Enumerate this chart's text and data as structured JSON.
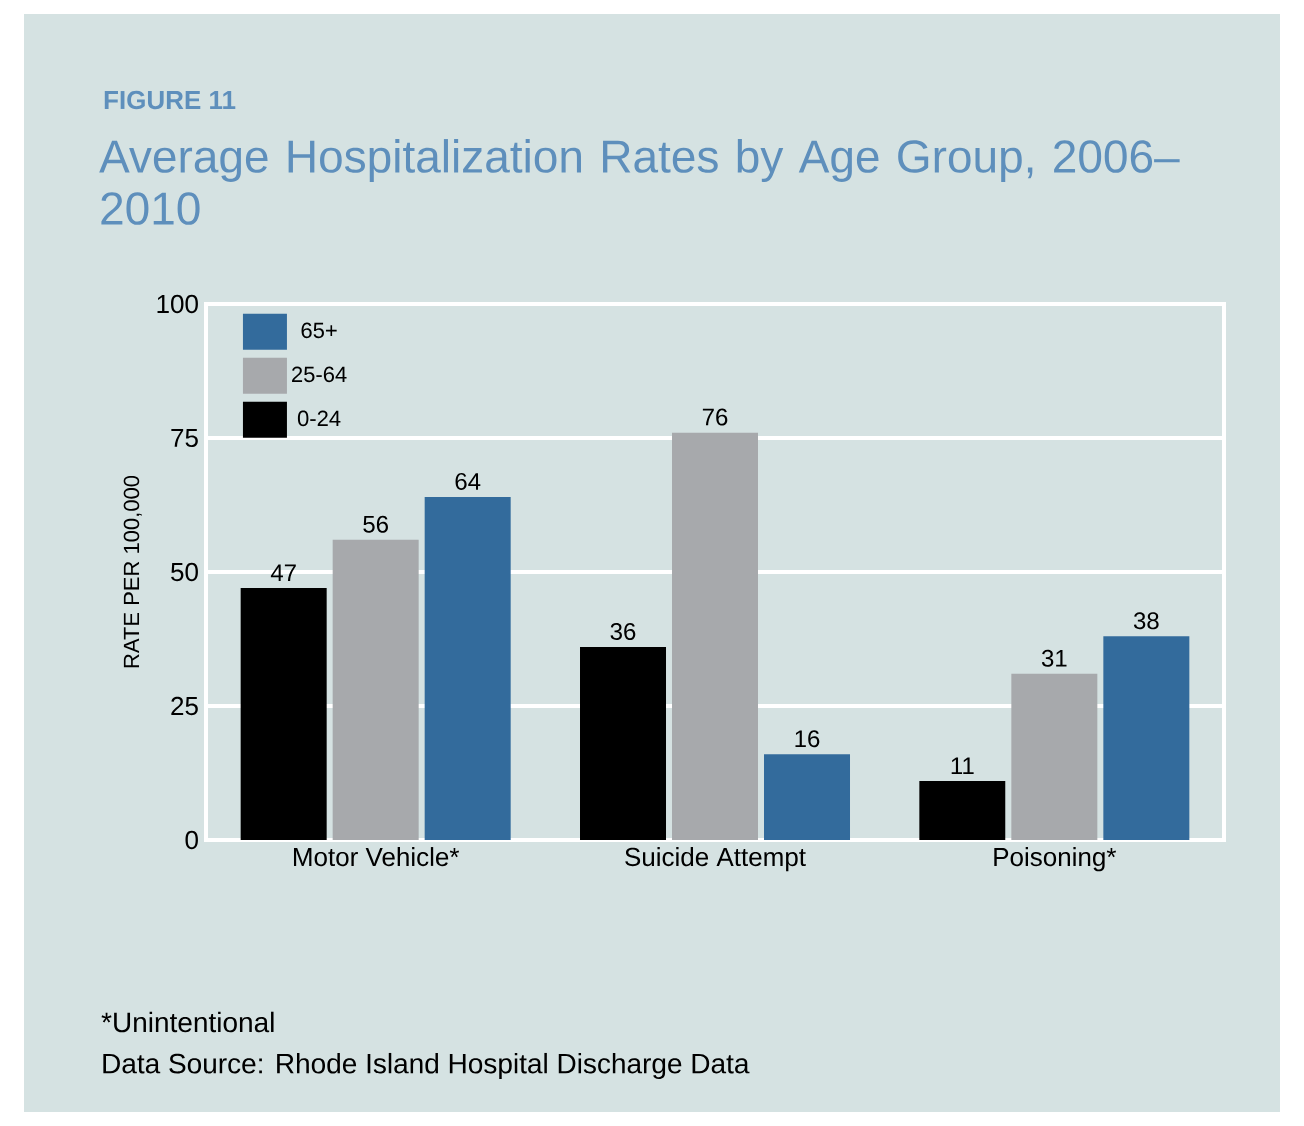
{
  "chart_data": {
    "type": "bar",
    "subtitle": "FIGURE 11",
    "title": "Average Hospitalization Rates by Age Group, 2006–2010",
    "ylabel": "RATE PER 100,000",
    "categories": [
      "Motor Vehicle*",
      "Suicide Attempt",
      "Poisoning*"
    ],
    "series": [
      {
        "name": "0-24",
        "color": "#000000",
        "values": [
          47,
          36,
          11
        ]
      },
      {
        "name": "25-64",
        "color": "#a7a9ac",
        "values": [
          56,
          76,
          31
        ]
      },
      {
        "name": "65+",
        "color": "#336b9c",
        "values": [
          64,
          16,
          38
        ]
      }
    ],
    "ylim": [
      0,
      100
    ],
    "yticks": [
      0,
      25,
      50,
      75,
      100
    ],
    "grid": "y",
    "legend": "top left",
    "data_labels": true,
    "annotations": [
      "*Unintentional",
      "Data Source: Rhode Island Hospital Discharge Data"
    ]
  }
}
